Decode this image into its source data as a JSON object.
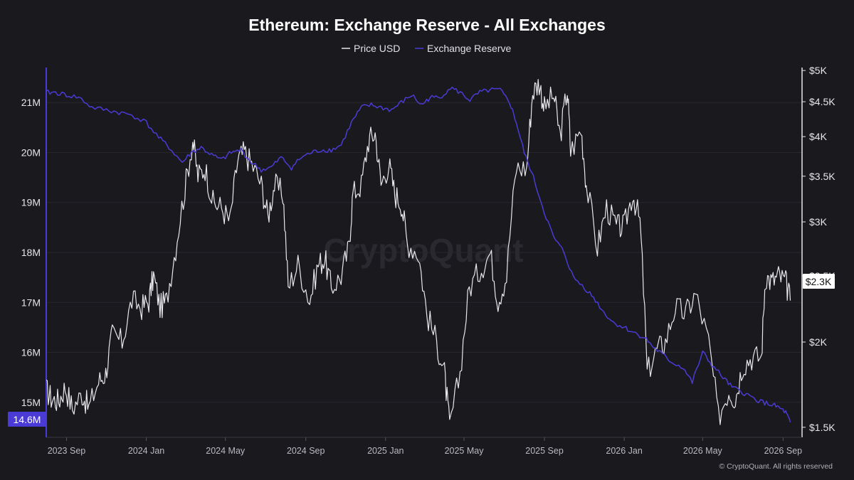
{
  "chart_data": {
    "type": "line",
    "title": "Ethereum: Exchange Reserve - All Exchanges",
    "legend": {
      "placement": "top-center",
      "entries": [
        {
          "name": "Price USD",
          "color": "#e8e8ec"
        },
        {
          "name": "Exchange Reserve",
          "color": "#4a3bd6"
        }
      ]
    },
    "x_ticks": [
      "2023 Sep",
      "2024 Jan",
      "2024 May",
      "2024 Sep",
      "2025 Jan",
      "2025 May",
      "2025 Sep",
      "2026 Jan",
      "2026 May",
      "2026 Sep"
    ],
    "x_range": [
      "2023-08-01",
      "2026-09-30"
    ],
    "left_axis": {
      "ticks": [
        15,
        16,
        17,
        18,
        19,
        20,
        21
      ],
      "tick_labels": [
        "15M",
        "16M",
        "17M",
        "18M",
        "19M",
        "20M",
        "21M"
      ],
      "range": [
        14.3,
        21.7
      ],
      "color": "#4a3bd6"
    },
    "right_axis": {
      "scale": "log",
      "ticks": [
        1500,
        2000,
        2500,
        3000,
        3500,
        4000,
        4500,
        5000
      ],
      "tick_labels": [
        "$1.5K",
        "$2K",
        "$2.5K",
        "$3K",
        "$3.5K",
        "$4K",
        "$4.5K",
        "$5K"
      ],
      "range": [
        1450,
        5050
      ]
    },
    "grid": true,
    "current_values": {
      "reserve_label": "14.6M",
      "price_label": "$2.3K"
    },
    "series": [
      {
        "name": "Price USD",
        "color": "#e8e8ec",
        "points": [
          [
            "2023-08-01",
            1700
          ],
          [
            "2023-08-10",
            1650
          ],
          [
            "2023-08-20",
            1640
          ],
          [
            "2023-08-30",
            1720
          ],
          [
            "2023-09-10",
            1600
          ],
          [
            "2023-09-25",
            1680
          ],
          [
            "2023-10-05",
            1600
          ],
          [
            "2023-10-20",
            1750
          ],
          [
            "2023-10-31",
            1800
          ],
          [
            "2023-11-10",
            2050
          ],
          [
            "2023-11-25",
            2000
          ],
          [
            "2023-12-10",
            2300
          ],
          [
            "2023-12-25",
            2250
          ],
          [
            "2024-01-05",
            2300
          ],
          [
            "2024-01-12",
            2500
          ],
          [
            "2024-01-22",
            2250
          ],
          [
            "2024-02-01",
            2300
          ],
          [
            "2024-02-15",
            2750
          ],
          [
            "2024-02-29",
            3350
          ],
          [
            "2024-03-12",
            3950
          ],
          [
            "2024-03-20",
            3500
          ],
          [
            "2024-03-31",
            3600
          ],
          [
            "2024-04-12",
            3200
          ],
          [
            "2024-04-25",
            3150
          ],
          [
            "2024-05-08",
            3000
          ],
          [
            "2024-05-20",
            3700
          ],
          [
            "2024-05-30",
            3800
          ],
          [
            "2024-06-10",
            3650
          ],
          [
            "2024-06-25",
            3400
          ],
          [
            "2024-07-05",
            3050
          ],
          [
            "2024-07-15",
            3400
          ],
          [
            "2024-07-28",
            3300
          ],
          [
            "2024-08-05",
            2400
          ],
          [
            "2024-08-20",
            2600
          ],
          [
            "2024-09-07",
            2300
          ],
          [
            "2024-09-20",
            2600
          ],
          [
            "2024-09-30",
            2650
          ],
          [
            "2024-10-10",
            2400
          ],
          [
            "2024-10-25",
            2500
          ],
          [
            "2024-11-06",
            2750
          ],
          [
            "2024-11-12",
            3300
          ],
          [
            "2024-11-25",
            3400
          ],
          [
            "2024-12-06",
            3950
          ],
          [
            "2024-12-16",
            4050
          ],
          [
            "2024-12-25",
            3400
          ],
          [
            "2025-01-06",
            3650
          ],
          [
            "2025-01-15",
            3300
          ],
          [
            "2025-01-25",
            3200
          ],
          [
            "2025-02-03",
            2800
          ],
          [
            "2025-02-20",
            2700
          ],
          [
            "2025-03-05",
            2200
          ],
          [
            "2025-03-20",
            2000
          ],
          [
            "2025-04-01",
            1800
          ],
          [
            "2025-04-09",
            1500
          ],
          [
            "2025-04-25",
            1800
          ],
          [
            "2025-05-09",
            2400
          ],
          [
            "2025-05-25",
            2550
          ],
          [
            "2025-06-10",
            2700
          ],
          [
            "2025-06-22",
            2300
          ],
          [
            "2025-07-05",
            2500
          ],
          [
            "2025-07-20",
            3600
          ],
          [
            "2025-08-05",
            3600
          ],
          [
            "2025-08-14",
            4650
          ],
          [
            "2025-08-24",
            4800
          ],
          [
            "2025-09-01",
            4400
          ],
          [
            "2025-09-15",
            4600
          ],
          [
            "2025-09-25",
            4000
          ],
          [
            "2025-10-06",
            4700
          ],
          [
            "2025-10-11",
            3800
          ],
          [
            "2025-10-27",
            4100
          ],
          [
            "2025-11-04",
            3400
          ],
          [
            "2025-11-21",
            2750
          ],
          [
            "2025-12-05",
            3150
          ],
          [
            "2025-12-20",
            2950
          ],
          [
            "2026-01-01",
            2950
          ],
          [
            "2026-01-14",
            3300
          ],
          [
            "2026-01-25",
            3000
          ],
          [
            "2026-02-05",
            1800
          ],
          [
            "2026-02-20",
            1950
          ],
          [
            "2026-03-05",
            2000
          ],
          [
            "2026-03-20",
            2250
          ],
          [
            "2026-04-05",
            2200
          ],
          [
            "2026-04-20",
            2350
          ],
          [
            "2026-05-10",
            2000
          ],
          [
            "2026-05-25",
            1550
          ],
          [
            "2026-06-10",
            1700
          ],
          [
            "2026-06-20",
            1650
          ],
          [
            "2026-07-01",
            1850
          ],
          [
            "2026-07-15",
            1900
          ],
          [
            "2026-07-30",
            1900
          ],
          [
            "2026-08-05",
            2500
          ],
          [
            "2026-08-15",
            2450
          ],
          [
            "2026-08-25",
            2500
          ],
          [
            "2026-09-05",
            2450
          ],
          [
            "2026-09-12",
            2300
          ]
        ]
      },
      {
        "name": "Exchange Reserve",
        "color": "#4a3bd6",
        "points": [
          [
            "2023-08-01",
            21.2
          ],
          [
            "2023-08-15",
            21.2
          ],
          [
            "2023-09-01",
            21.15
          ],
          [
            "2023-09-20",
            21.1
          ],
          [
            "2023-10-10",
            20.9
          ],
          [
            "2023-11-01",
            20.85
          ],
          [
            "2023-11-20",
            20.8
          ],
          [
            "2023-12-10",
            20.75
          ],
          [
            "2024-01-01",
            20.6
          ],
          [
            "2024-01-20",
            20.3
          ],
          [
            "2024-02-05",
            20.1
          ],
          [
            "2024-02-25",
            19.8
          ],
          [
            "2024-03-10",
            20.0
          ],
          [
            "2024-03-25",
            20.1
          ],
          [
            "2024-04-10",
            19.95
          ],
          [
            "2024-04-25",
            19.85
          ],
          [
            "2024-05-10",
            20.0
          ],
          [
            "2024-05-25",
            20.05
          ],
          [
            "2024-06-10",
            19.8
          ],
          [
            "2024-06-25",
            19.65
          ],
          [
            "2024-07-10",
            19.7
          ],
          [
            "2024-07-25",
            19.9
          ],
          [
            "2024-08-10",
            19.7
          ],
          [
            "2024-08-25",
            19.9
          ],
          [
            "2024-09-10",
            20.0
          ],
          [
            "2024-09-25",
            20.05
          ],
          [
            "2024-10-10",
            20.05
          ],
          [
            "2024-10-25",
            20.15
          ],
          [
            "2024-11-10",
            20.6
          ],
          [
            "2024-11-25",
            20.9
          ],
          [
            "2024-12-10",
            20.95
          ],
          [
            "2024-12-25",
            20.9
          ],
          [
            "2025-01-10",
            20.85
          ],
          [
            "2025-01-25",
            21.0
          ],
          [
            "2025-02-10",
            21.15
          ],
          [
            "2025-02-25",
            20.95
          ],
          [
            "2025-03-10",
            21.1
          ],
          [
            "2025-03-25",
            21.1
          ],
          [
            "2025-04-10",
            21.3
          ],
          [
            "2025-04-25",
            21.2
          ],
          [
            "2025-05-10",
            21.05
          ],
          [
            "2025-05-25",
            21.2
          ],
          [
            "2025-06-10",
            21.25
          ],
          [
            "2025-06-25",
            21.25
          ],
          [
            "2025-07-10",
            21.0
          ],
          [
            "2025-07-20",
            20.6
          ],
          [
            "2025-08-01",
            20.0
          ],
          [
            "2025-08-15",
            19.5
          ],
          [
            "2025-09-01",
            18.8
          ],
          [
            "2025-09-15",
            18.3
          ],
          [
            "2025-10-01",
            18.0
          ],
          [
            "2025-10-15",
            17.5
          ],
          [
            "2025-11-01",
            17.3
          ],
          [
            "2025-11-15",
            17.1
          ],
          [
            "2025-12-01",
            16.8
          ],
          [
            "2025-12-15",
            16.6
          ],
          [
            "2026-01-01",
            16.5
          ],
          [
            "2026-01-15",
            16.4
          ],
          [
            "2026-02-01",
            16.3
          ],
          [
            "2026-02-15",
            16.1
          ],
          [
            "2026-03-01",
            15.95
          ],
          [
            "2026-03-15",
            15.8
          ],
          [
            "2026-04-01",
            15.7
          ],
          [
            "2026-04-15",
            15.4
          ],
          [
            "2026-05-01",
            16.0
          ],
          [
            "2026-05-15",
            15.75
          ],
          [
            "2026-06-01",
            15.5
          ],
          [
            "2026-06-15",
            15.3
          ],
          [
            "2026-07-01",
            15.2
          ],
          [
            "2026-07-15",
            15.1
          ],
          [
            "2026-08-01",
            15.0
          ],
          [
            "2026-08-15",
            14.95
          ],
          [
            "2026-08-25",
            14.9
          ],
          [
            "2026-09-05",
            14.8
          ],
          [
            "2026-09-12",
            14.6
          ]
        ]
      }
    ]
  },
  "watermark": "CryptoQuant",
  "copyright": "© CryptoQuant. All rights reserved"
}
